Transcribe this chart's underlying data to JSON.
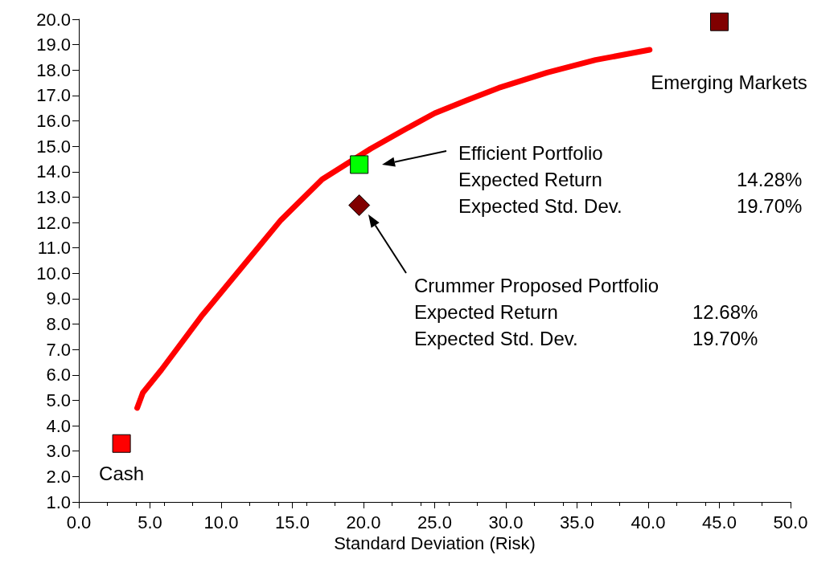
{
  "chart_data": {
    "type": "line",
    "xlabel": "Standard Deviation (Risk)",
    "xlim": [
      0,
      50
    ],
    "xticks": [
      {
        "value": 0,
        "label": "0.0"
      },
      {
        "value": 5,
        "label": "5.0"
      },
      {
        "value": 10,
        "label": "10.0"
      },
      {
        "value": 15,
        "label": "15.0"
      },
      {
        "value": 20,
        "label": "20.0"
      },
      {
        "value": 25,
        "label": "25.0"
      },
      {
        "value": 30,
        "label": "30.0"
      },
      {
        "value": 35,
        "label": "35.0"
      },
      {
        "value": 40,
        "label": "40.0"
      },
      {
        "value": 45,
        "label": "45.0"
      },
      {
        "value": 50,
        "label": "50.0"
      }
    ],
    "ylim": [
      1,
      20
    ],
    "yticks": [
      {
        "value": 1,
        "label": "1.0"
      },
      {
        "value": 2,
        "label": "2.0"
      },
      {
        "value": 3,
        "label": "3.0"
      },
      {
        "value": 4,
        "label": "4.0"
      },
      {
        "value": 5,
        "label": "5.0"
      },
      {
        "value": 6,
        "label": "6.0"
      },
      {
        "value": 7,
        "label": "7.0"
      },
      {
        "value": 8,
        "label": "8.0"
      },
      {
        "value": 9,
        "label": "9.0"
      },
      {
        "value": 10,
        "label": "10.0"
      },
      {
        "value": 11,
        "label": "11.0"
      },
      {
        "value": 12,
        "label": "12.0"
      },
      {
        "value": 13,
        "label": "13.0"
      },
      {
        "value": 14,
        "label": "14.0"
      },
      {
        "value": 15,
        "label": "15.0"
      },
      {
        "value": 16,
        "label": "16.0"
      },
      {
        "value": 17,
        "label": "17.0"
      },
      {
        "value": 18,
        "label": "18.0"
      },
      {
        "value": 19,
        "label": "19.0"
      },
      {
        "value": 20,
        "label": "20.0"
      }
    ],
    "grid": false,
    "legend": false,
    "series": [
      {
        "color": "#ff0000",
        "marker": "none",
        "line_style": "solid",
        "x": [
          4.1,
          4.5,
          5.8,
          8.6,
          11.4,
          14.2,
          17.1,
          18.8,
          20.5,
          22.7,
          25.0,
          27.2,
          29.5,
          32.9,
          36.3,
          40.1
        ],
        "values": [
          4.7,
          5.3,
          6.2,
          8.3,
          10.2,
          12.1,
          13.7,
          14.3,
          14.9,
          15.6,
          16.3,
          16.8,
          17.3,
          17.9,
          18.4,
          18.8
        ]
      },
      {
        "type": "scatter",
        "name": "Cash",
        "color": "#ff0000",
        "marker": "square",
        "x": [
          3.0
        ],
        "values": [
          3.3
        ]
      },
      {
        "type": "scatter",
        "color": "#00ff00",
        "marker": "square",
        "x": [
          19.7
        ],
        "values": [
          14.28
        ]
      },
      {
        "type": "scatter",
        "color": "#800000",
        "marker": "diamond",
        "x": [
          19.7
        ],
        "values": [
          12.68
        ]
      },
      {
        "type": "scatter",
        "name": "Emerging Markets",
        "color": "#800000",
        "marker": "square",
        "x": [
          45.0
        ],
        "values": [
          19.9
        ]
      }
    ],
    "annotations": [
      "Efficient Portfolio",
      "Expected Return",
      "14.28%",
      "Expected Std. Dev.",
      "19.70%",
      "Crummer Proposed Portfolio",
      "Expected Return",
      "12.68%",
      "Expected Std. Dev.",
      "19.70%"
    ]
  }
}
